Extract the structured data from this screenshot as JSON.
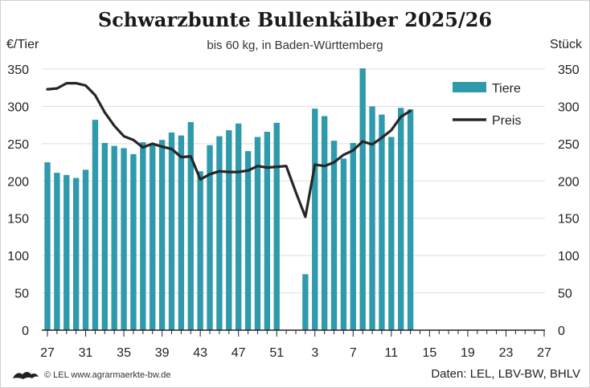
{
  "chart_data": {
    "type": "bar+line",
    "title": "Schwarzbunte Bullenkälber 2025/26",
    "subtitle": "bis 60 kg, in Baden-Württemberg",
    "ylabel_left": "€/Tier",
    "ylabel_right": "Stück",
    "ylim_left": [
      0,
      350
    ],
    "ylim_right": [
      0,
      350
    ],
    "yticks": [
      0,
      50,
      100,
      150,
      200,
      250,
      300,
      350
    ],
    "xtick_labels": [
      "27",
      "31",
      "35",
      "39",
      "43",
      "47",
      "51",
      "3",
      "7",
      "11",
      "15",
      "19",
      "23",
      "27"
    ],
    "legend": {
      "position": "right",
      "bars_label": "Tiere",
      "line_label": "Preis"
    },
    "colors": {
      "bars": "#2e9aab",
      "line": "#262626",
      "grid": "#dddddd"
    },
    "weeks": [
      "27",
      "28",
      "29",
      "30",
      "31",
      "32",
      "33",
      "34",
      "35",
      "36",
      "37",
      "38",
      "39",
      "40",
      "41",
      "42",
      "43",
      "44",
      "45",
      "46",
      "47",
      "48",
      "49",
      "50",
      "51",
      "52",
      "1",
      "2",
      "3",
      "4",
      "5",
      "6",
      "7",
      "8",
      "9",
      "10",
      "11",
      "12",
      "13",
      "14",
      "15",
      "16",
      "17",
      "18",
      "19",
      "20",
      "21",
      "22",
      "23",
      "24",
      "25",
      "26",
      "27"
    ],
    "tiere": [
      225,
      211,
      208,
      204,
      215,
      282,
      251,
      247,
      244,
      236,
      252,
      250,
      255,
      265,
      261,
      279,
      213,
      248,
      260,
      268,
      277,
      240,
      259,
      266,
      278,
      null,
      null,
      75,
      297,
      287,
      254,
      230,
      251,
      351,
      300,
      289,
      259,
      298,
      296,
      null,
      null,
      null,
      null,
      null,
      null,
      null,
      null,
      null,
      null,
      null,
      null,
      null,
      null
    ],
    "preis": [
      323,
      324,
      331,
      331,
      328,
      315,
      292,
      274,
      260,
      255,
      245,
      250,
      246,
      243,
      232,
      233,
      202,
      209,
      213,
      212,
      212,
      214,
      220,
      218,
      219,
      220,
      185,
      152,
      222,
      220,
      225,
      235,
      241,
      253,
      249,
      258,
      268,
      286,
      294,
      null,
      null,
      null,
      null,
      null,
      null,
      null,
      null,
      null,
      null,
      null,
      null,
      null,
      null
    ]
  },
  "footer": {
    "copyright": "© LEL www.agrarmaerkte-bw.de",
    "source": "Daten: LEL, LBV-BW, BHLV"
  }
}
